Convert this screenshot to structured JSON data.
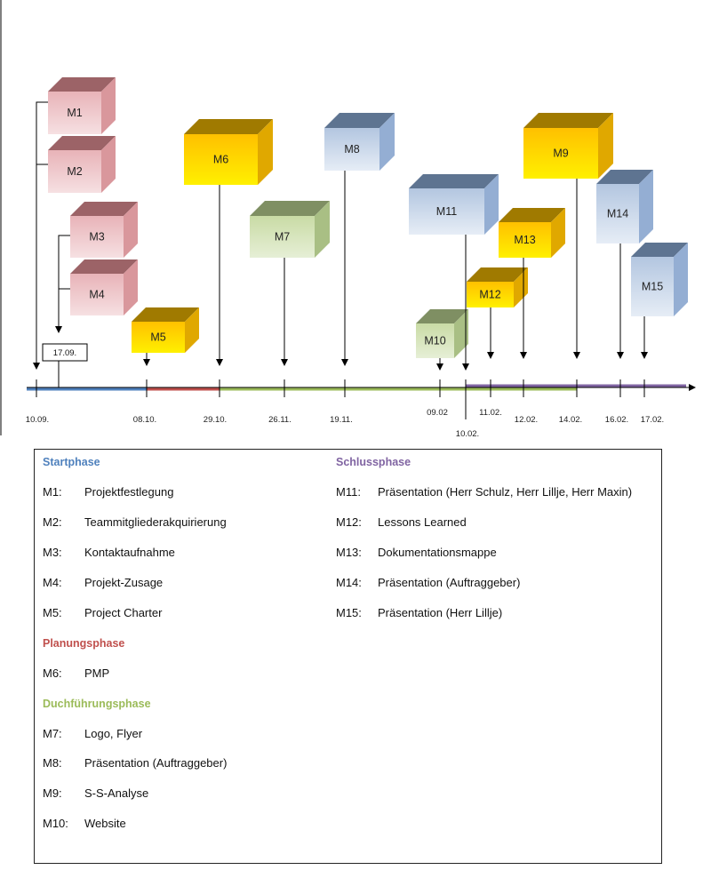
{
  "colors": {
    "startphase": "#4F81BD",
    "planungsphase": "#C0504D",
    "durchfuehrung": "#9BBB59",
    "schlussphase": "#8064A2",
    "pink": "#E6A9B0",
    "gold": "#FFC000",
    "green": "#C4D79B",
    "blue": "#B8CCE4"
  },
  "timeline": {
    "start_marker": "17.09.",
    "dates": [
      "10.09.",
      "08.10.",
      "29.10.",
      "26.11.",
      "19.11.",
      "09.02",
      "10.02.",
      "11.02.",
      "12.02.",
      "14.02.",
      "16.02.",
      "17.02."
    ]
  },
  "milestones_cubes": [
    "M1",
    "M2",
    "M3",
    "M4",
    "M5",
    "M6",
    "M7",
    "M8",
    "M9",
    "M10",
    "M11",
    "M12",
    "M13",
    "M14",
    "M15"
  ],
  "legend": {
    "startphase": {
      "title": "Startphase",
      "items": [
        {
          "id": "M1:",
          "text": "Projektfestlegung"
        },
        {
          "id": "M2:",
          "text": "Teammitgliederakquirierung"
        },
        {
          "id": "M3:",
          "text": "Kontaktaufnahme"
        },
        {
          "id": "M4:",
          "text": "Projekt-Zusage"
        },
        {
          "id": "M5:",
          "text": "Project Charter"
        }
      ]
    },
    "planungsphase": {
      "title": "Planungsphase",
      "items": [
        {
          "id": "M6:",
          "text": "PMP"
        }
      ]
    },
    "durchfuehrungsphase": {
      "title": "Duchführungsphase",
      "items": [
        {
          "id": "M7:",
          "text": "Logo, Flyer"
        },
        {
          "id": "M8:",
          "text": "Präsentation (Auftraggeber)"
        },
        {
          "id": "M9:",
          "text": "S-S-Analyse"
        },
        {
          "id": "M10:",
          "text": "Website"
        }
      ]
    },
    "schlussphase": {
      "title": "Schlussphase",
      "items": [
        {
          "id": "M11:",
          "text": "Präsentation (Herr Schulz, Herr Lillje, Herr Maxin)"
        },
        {
          "id": "M12:",
          "text": "Lessons Learned"
        },
        {
          "id": "M13:",
          "text": "Dokumentationsmappe"
        },
        {
          "id": "M14:",
          "text": "Präsentation (Auftraggeber)"
        },
        {
          "id": "M15:",
          "text": "Präsentation (Herr Lillje)"
        }
      ]
    }
  }
}
